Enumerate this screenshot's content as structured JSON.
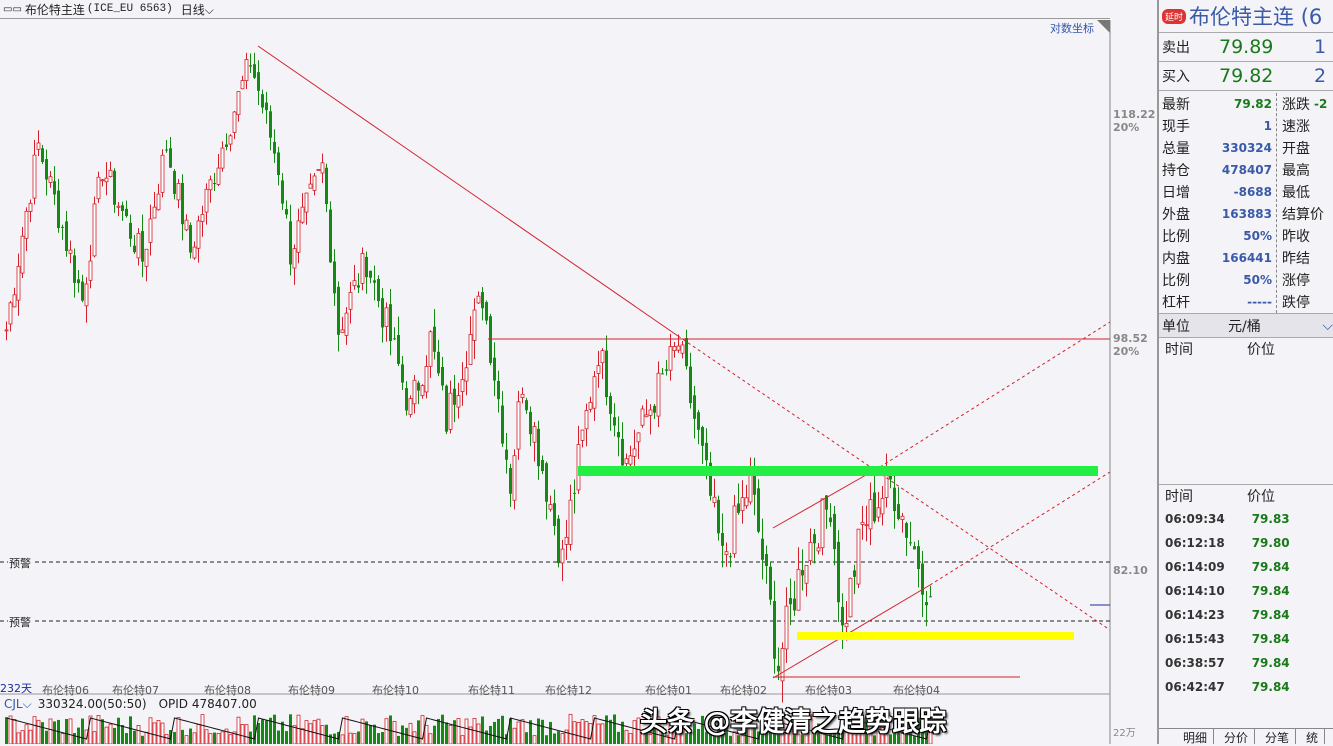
{
  "header": {
    "symbol_name": "布伦特主连",
    "symbol_code": "(ICE_EU 6563)",
    "period": "日线"
  },
  "chart": {
    "log_scale_label": "对数坐标",
    "axis_labels": [
      {
        "price": "118.22",
        "pct": "20%"
      },
      {
        "price": "98.52",
        "pct": "20%"
      },
      {
        "price": "82.10"
      }
    ],
    "warning_label": "预警",
    "days_label": "232天",
    "date_labels": [
      "布伦特06",
      "布伦特07",
      "布伦特08",
      "布伦特09",
      "布伦特10",
      "布伦特11",
      "布伦特12",
      "布伦特01",
      "布伦特02",
      "布伦特03",
      "布伦特04"
    ],
    "colors": {
      "up": "#d4202a",
      "down": "#148a14",
      "resistance": "#22ee44",
      "support": "#ffff00",
      "trend": "#d4202a"
    }
  },
  "chart_data": {
    "type": "candlestick",
    "scale": "log",
    "bars": 232,
    "close_waypoints": [
      [
        0,
        99.2
      ],
      [
        8,
        115.2
      ],
      [
        19,
        101.6
      ],
      [
        24,
        113.2
      ],
      [
        34,
        105
      ],
      [
        40,
        115.2
      ],
      [
        46,
        105.7
      ],
      [
        61,
        123.4
      ],
      [
        68,
        113.2
      ],
      [
        71,
        105.7
      ],
      [
        79,
        113.2
      ],
      [
        83,
        99.2
      ],
      [
        90,
        105
      ],
      [
        101,
        92.9
      ],
      [
        106,
        98.4
      ],
      [
        110,
        92.1
      ],
      [
        119,
        102
      ],
      [
        126,
        87.6
      ],
      [
        129,
        95.2
      ],
      [
        139,
        82.2
      ],
      [
        148,
        97.6
      ],
      [
        155,
        89
      ],
      [
        168,
        98
      ],
      [
        179,
        82.2
      ],
      [
        186,
        87.6
      ],
      [
        193,
        75.5
      ],
      [
        199,
        82.2
      ],
      [
        206,
        86.2
      ],
      [
        209,
        77.5
      ],
      [
        214,
        84.5
      ],
      [
        221,
        87.6
      ],
      [
        231,
        79.8
      ]
    ]
  },
  "volume": {
    "indicator": "CJL",
    "summary": "330324.00(50:50)",
    "opid": "OPID 478407.00",
    "scale_label": "22万"
  },
  "watermark": "头条 @李健清之趋势跟踪",
  "panel": {
    "badge": "延时",
    "title": "布伦特主连 (6",
    "sell": {
      "label": "卖出",
      "price": "79.89",
      "qty": "1"
    },
    "buy": {
      "label": "买入",
      "price": "79.82",
      "qty": "2"
    },
    "left": [
      {
        "k": "最新",
        "v": "79.82"
      },
      {
        "k": "现手",
        "v": "1"
      },
      {
        "k": "总量",
        "v": "330324"
      },
      {
        "k": "持仓",
        "v": "478407"
      },
      {
        "k": "日增",
        "v": "-8688"
      },
      {
        "k": "外盘",
        "v": "163883"
      },
      {
        "k": "比例",
        "v": "50%"
      },
      {
        "k": "内盘",
        "v": "166441"
      },
      {
        "k": "比例",
        "v": "50%"
      },
      {
        "k": "杠杆",
        "v": "-----"
      }
    ],
    "right": [
      {
        "k": "涨跌",
        "v": "-2"
      },
      {
        "k": "速涨"
      },
      {
        "k": "开盘"
      },
      {
        "k": "最高"
      },
      {
        "k": "最低"
      },
      {
        "k": "结算价"
      },
      {
        "k": "昨收"
      },
      {
        "k": "昨结"
      },
      {
        "k": "涨停"
      },
      {
        "k": "跌停"
      }
    ],
    "unit_label": "单位",
    "unit_value": "元/桶",
    "col_time": "时间",
    "col_price": "价位",
    "ticks": [
      {
        "t": "06:09:34",
        "p": "79.83"
      },
      {
        "t": "06:12:18",
        "p": "79.80"
      },
      {
        "t": "06:14:09",
        "p": "79.84"
      },
      {
        "t": "06:14:10",
        "p": "79.84"
      },
      {
        "t": "06:14:23",
        "p": "79.84"
      },
      {
        "t": "06:15:43",
        "p": "79.84"
      },
      {
        "t": "06:38:57",
        "p": "79.84"
      },
      {
        "t": "06:42:47",
        "p": "79.84"
      }
    ],
    "tabs": [
      "明细",
      "分价",
      "分笔",
      "统"
    ]
  }
}
